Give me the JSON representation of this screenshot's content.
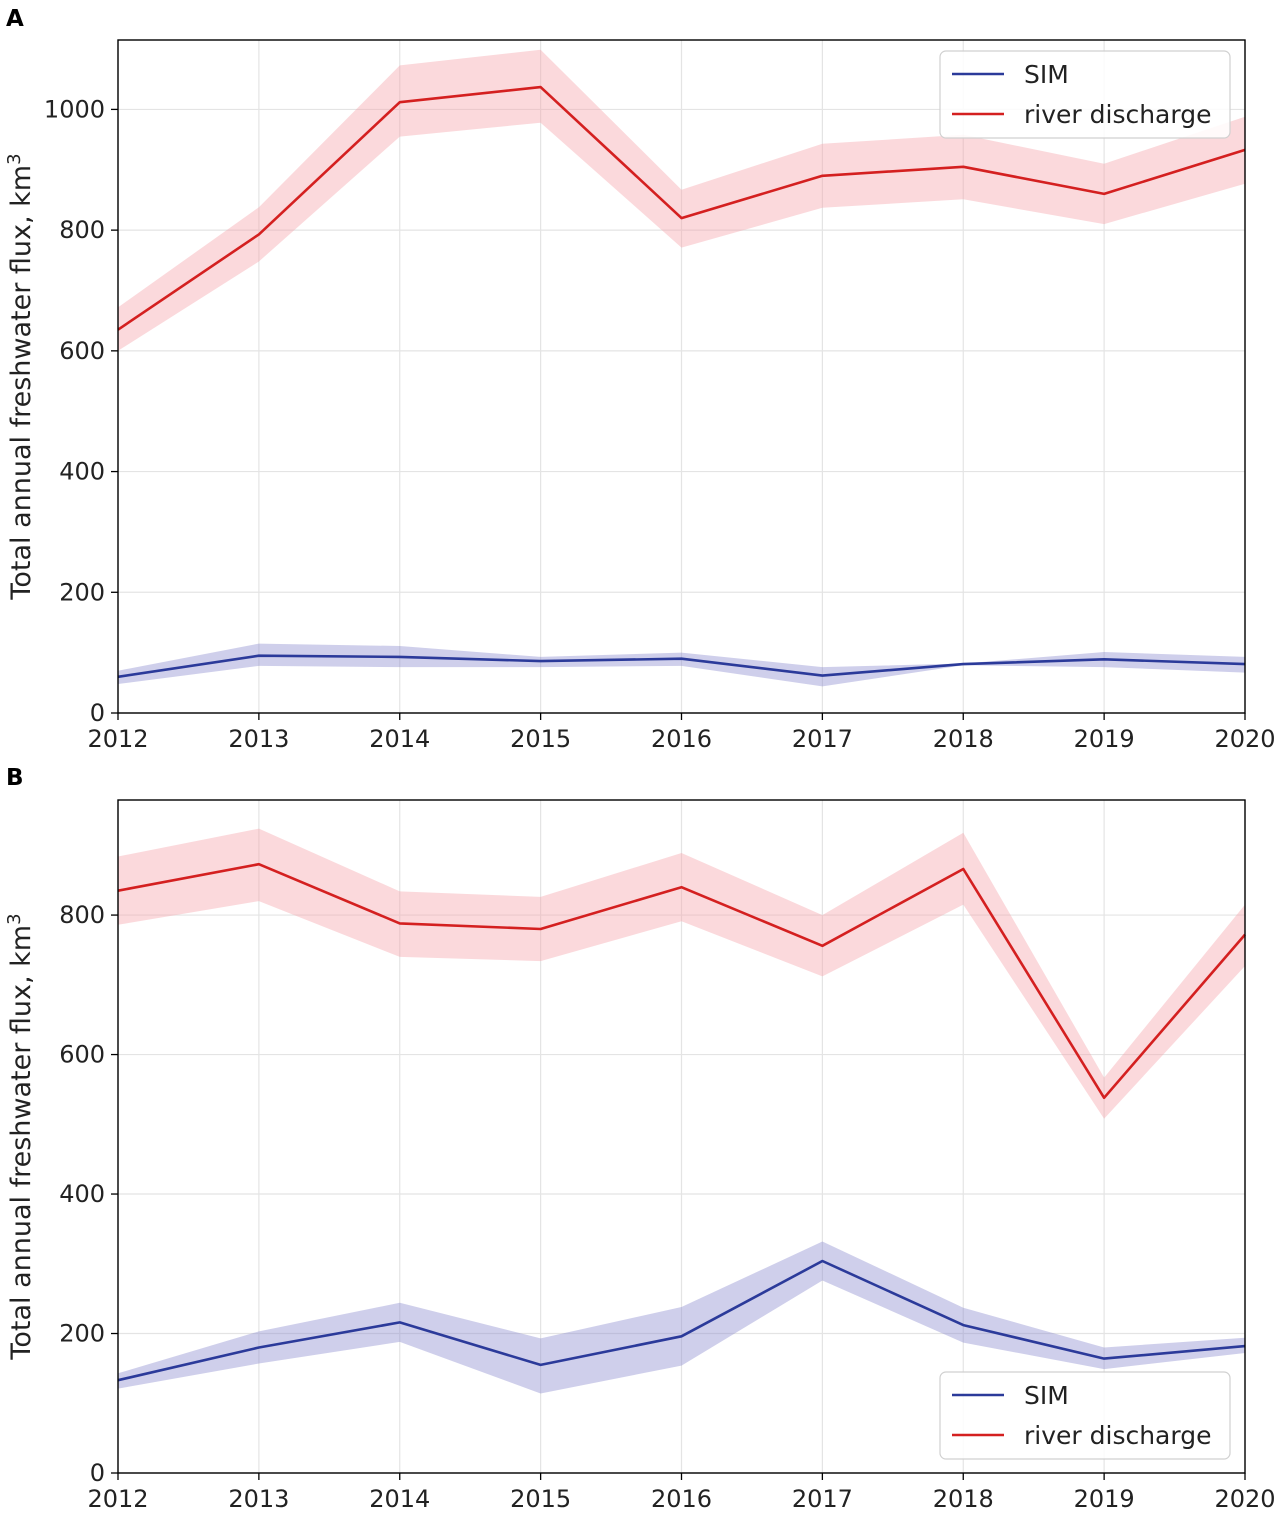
{
  "chart_data": [
    {
      "panel": "A",
      "type": "line",
      "title": "",
      "xlabel": "",
      "ylabel": "Total annual freshwater flux, km",
      "ylabel_superscript": "3",
      "x": [
        2012,
        2013,
        2014,
        2015,
        2016,
        2017,
        2018,
        2019,
        2020
      ],
      "xlim": [
        2012,
        2020
      ],
      "ylim": [
        0,
        1115
      ],
      "yticks": [
        0,
        200,
        400,
        600,
        800,
        1000
      ],
      "grid": true,
      "legend_position": "top-right",
      "series": [
        {
          "name": "SIM",
          "color": "#2b3a9a",
          "band_color": "#8888cc",
          "values": [
            60,
            95,
            93,
            86,
            90,
            62,
            81,
            89,
            81
          ],
          "lower": [
            48,
            78,
            76,
            76,
            78,
            44,
            79,
            76,
            67
          ],
          "upper": [
            70,
            115,
            111,
            93,
            100,
            76,
            82,
            101,
            93
          ]
        },
        {
          "name": "river discharge",
          "color": "#d42020",
          "band_color": "#f4a0a8",
          "values": [
            635,
            793,
            1012,
            1037,
            820,
            890,
            905,
            860,
            933
          ],
          "lower": [
            600,
            748,
            955,
            978,
            771,
            837,
            851,
            810,
            877
          ],
          "upper": [
            672,
            838,
            1073,
            1099,
            867,
            943,
            958,
            910,
            988
          ]
        }
      ]
    },
    {
      "panel": "B",
      "type": "line",
      "title": "",
      "xlabel": "",
      "ylabel": "Total annual freshwater flux, km",
      "ylabel_superscript": "3",
      "x": [
        2012,
        2013,
        2014,
        2015,
        2016,
        2017,
        2018,
        2019,
        2020
      ],
      "xlim": [
        2012,
        2020
      ],
      "ylim": [
        0,
        965
      ],
      "yticks": [
        0,
        200,
        400,
        600,
        800
      ],
      "grid": true,
      "legend_position": "bottom-right",
      "series": [
        {
          "name": "SIM",
          "color": "#2b3a9a",
          "band_color": "#8888cc",
          "values": [
            133,
            180,
            216,
            155,
            196,
            304,
            212,
            164,
            182
          ],
          "lower": [
            121,
            157,
            188,
            114,
            154,
            276,
            187,
            149,
            172
          ],
          "upper": [
            143,
            203,
            244,
            193,
            238,
            332,
            237,
            180,
            194
          ]
        },
        {
          "name": "river discharge",
          "color": "#d42020",
          "band_color": "#f4a0a8",
          "values": [
            835,
            873,
            788,
            780,
            840,
            756,
            866,
            538,
            772
          ],
          "lower": [
            786,
            820,
            740,
            734,
            791,
            712,
            815,
            508,
            727
          ],
          "upper": [
            884,
            924,
            834,
            826,
            889,
            800,
            918,
            567,
            815
          ]
        }
      ]
    }
  ]
}
